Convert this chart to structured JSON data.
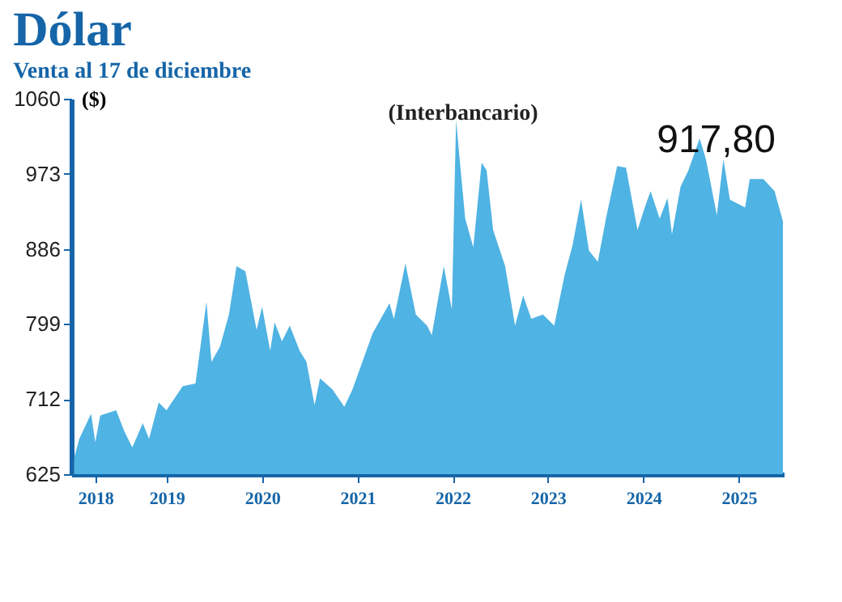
{
  "chart_data": {
    "type": "area",
    "title": "Dólar",
    "subtitle": "Venta al 17 de diciembre",
    "ylabel": "($)",
    "annotations": [
      "(Interbancario)",
      "917,80"
    ],
    "x": [
      "2018-07-12",
      "2018-08-01",
      "2018-09-15",
      "2018-10-01",
      "2018-10-20",
      "2018-12-20",
      "2019-01-20",
      "2019-02-20",
      "2019-04-01",
      "2019-04-25",
      "2019-06-01",
      "2019-07-01",
      "2019-09-01",
      "2019-10-20",
      "2019-12-01",
      "2019-12-20",
      "2020-01-22",
      "2020-02-25",
      "2020-03-25",
      "2020-04-28",
      "2020-06-10",
      "2020-07-01",
      "2020-08-01",
      "2020-08-18",
      "2020-09-15",
      "2020-10-15",
      "2020-11-22",
      "2020-12-18",
      "2021-01-18",
      "2021-02-08",
      "2021-03-28",
      "2021-05-12",
      "2021-06-12",
      "2021-08-28",
      "2021-11-01",
      "2021-11-18",
      "2022-01-01",
      "2022-02-10",
      "2022-03-25",
      "2022-04-12",
      "2022-05-28",
      "2022-06-28",
      "2022-07-14",
      "2022-08-18",
      "2022-09-18",
      "2022-10-20",
      "2022-11-08",
      "2022-12-03",
      "2023-01-18",
      "2023-02-25",
      "2023-03-28",
      "2023-04-28",
      "2023-06-12",
      "2023-07-25",
      "2023-09-03",
      "2023-10-03",
      "2023-11-05",
      "2023-12-05",
      "2024-01-08",
      "2024-02-08",
      "2024-03-22",
      "2024-04-25",
      "2024-06-08",
      "2024-07-08",
      "2024-07-28",
      "2024-09-01",
      "2024-10-01",
      "2024-10-18",
      "2024-11-20",
      "2024-12-20",
      "2025-02-01",
      "2025-02-25",
      "2025-04-08",
      "2025-05-03",
      "2025-05-28",
      "2025-07-25",
      "2025-08-12",
      "2025-10-03",
      "2025-11-15",
      "2025-12-17"
    ],
    "series": [
      {
        "color": "#4fb3e3",
        "values": [
          644,
          666,
          695,
          662,
          693,
          699,
          675,
          656,
          684,
          666,
          708,
          699,
          727,
          730,
          825,
          755,
          773,
          810,
          866,
          860,
          792,
          819,
          768,
          801,
          779,
          797,
          768,
          755,
          705,
          736,
          723,
          703,
          723,
          788,
          823,
          805,
          869,
          810,
          797,
          786,
          866,
          816,
          1035,
          921,
          888,
          986,
          977,
          908,
          866,
          797,
          832,
          805,
          810,
          797,
          856,
          890,
          943,
          884,
          871,
          921,
          982,
          980,
          908,
          936,
          953,
          921,
          945,
          903,
          958,
          977,
          1014,
          990,
          925,
          990,
          943,
          934,
          967,
          967,
          953,
          918
        ]
      }
    ],
    "xlim": [
      "2018-07-01",
      "2025-12-20"
    ],
    "xticks": [
      {
        "value": "2018-10-01",
        "label": "2018"
      },
      {
        "value": "2019-07-01",
        "label": "2019"
      },
      {
        "value": "2020-07-01",
        "label": "2020"
      },
      {
        "value": "2021-07-01",
        "label": "2021"
      },
      {
        "value": "2022-07-01",
        "label": "2022"
      },
      {
        "value": "2023-07-01",
        "label": "2023"
      },
      {
        "value": "2024-07-01",
        "label": "2024"
      },
      {
        "value": "2025-07-01",
        "label": "2025"
      }
    ],
    "ylim": [
      625,
      1060
    ],
    "yticks": [
      625,
      712,
      799,
      886,
      973,
      1060
    ],
    "grid": false,
    "legend": false
  }
}
